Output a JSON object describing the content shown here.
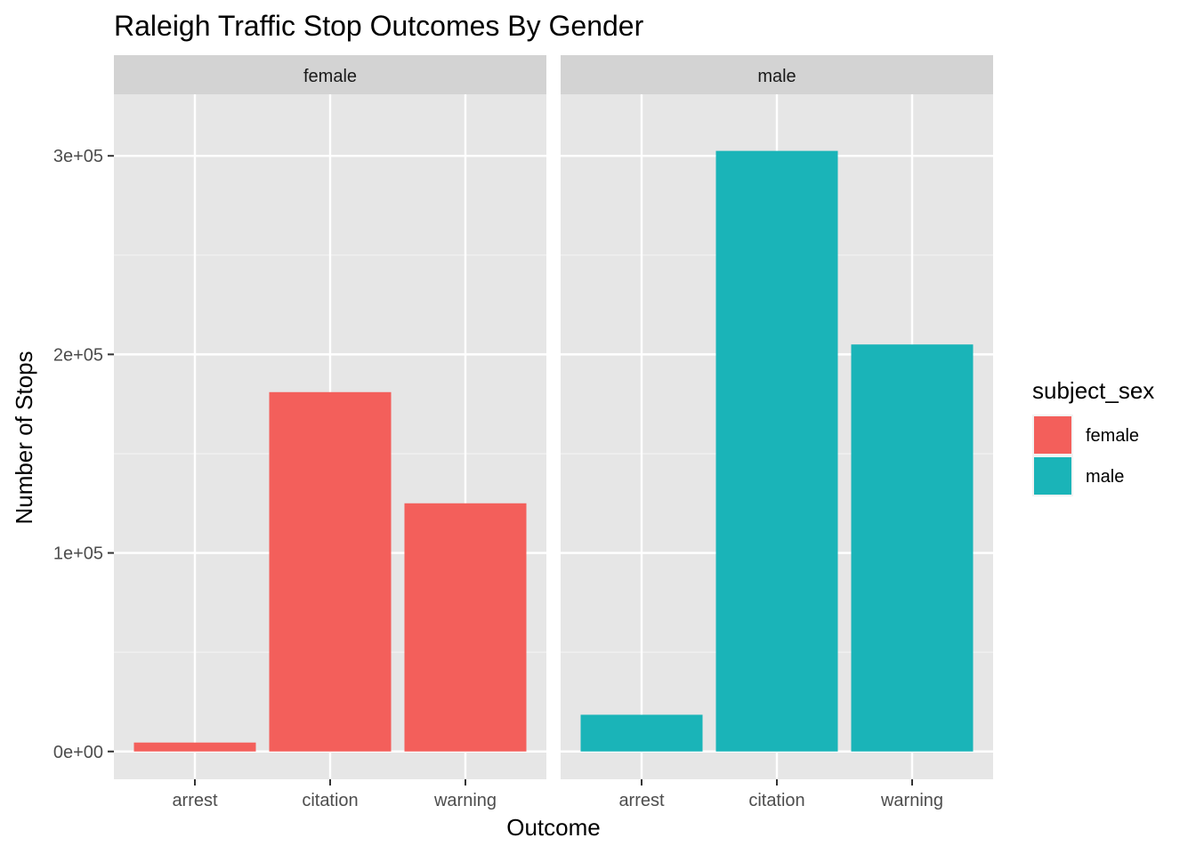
{
  "chart_data": {
    "type": "bar",
    "title": "Raleigh Traffic Stop Outcomes By Gender",
    "xlabel": "Outcome",
    "ylabel": "Number of Stops",
    "categories": [
      "arrest",
      "citation",
      "warning"
    ],
    "ylim": [
      -14000,
      331000
    ],
    "yticks": [
      0,
      100000,
      200000,
      300000
    ],
    "ytick_labels": [
      "0e+00",
      "1e+05",
      "2e+05",
      "3e+05"
    ],
    "grid": true,
    "facets": [
      {
        "label": "female",
        "series": "female",
        "values": [
          4500,
          181000,
          125000
        ]
      },
      {
        "label": "male",
        "series": "male",
        "values": [
          18500,
          302500,
          205000
        ]
      }
    ],
    "legend": {
      "title": "subject_sex",
      "position": "right",
      "entries": [
        {
          "name": "female",
          "color": "#F35F5B"
        },
        {
          "name": "male",
          "color": "#1AB4B8"
        }
      ]
    },
    "panel_background": "#E6E6E6",
    "strip_background": "#D3D3D3"
  }
}
